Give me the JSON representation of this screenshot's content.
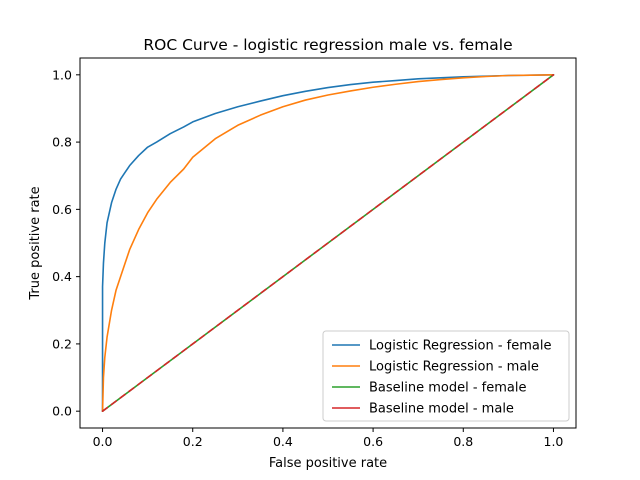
{
  "chart_data": {
    "type": "line",
    "title": "ROC Curve - logistic regression male vs. female",
    "xlabel": "False positive rate",
    "ylabel": "True positive rate",
    "xlim": [
      -0.05,
      1.05
    ],
    "ylim": [
      -0.05,
      1.05
    ],
    "xticks": [
      0.0,
      0.2,
      0.4,
      0.6,
      0.8,
      1.0
    ],
    "yticks": [
      0.0,
      0.2,
      0.4,
      0.6,
      0.8,
      1.0
    ],
    "xtick_labels": [
      "0.0",
      "0.2",
      "0.4",
      "0.6",
      "0.8",
      "1.0"
    ],
    "ytick_labels": [
      "0.0",
      "0.2",
      "0.4",
      "0.6",
      "0.8",
      "1.0"
    ],
    "grid": false,
    "legend_position": "lower-right",
    "series": [
      {
        "name": "Logistic Regression - female",
        "color": "#1f77b4",
        "x": [
          0.0,
          0.0,
          0.002,
          0.005,
          0.01,
          0.02,
          0.03,
          0.04,
          0.05,
          0.06,
          0.08,
          0.1,
          0.12,
          0.15,
          0.18,
          0.2,
          0.25,
          0.3,
          0.35,
          0.4,
          0.45,
          0.5,
          0.55,
          0.6,
          0.65,
          0.7,
          0.75,
          0.8,
          0.85,
          0.9,
          0.95,
          1.0
        ],
        "y": [
          0.0,
          0.37,
          0.44,
          0.5,
          0.56,
          0.62,
          0.66,
          0.69,
          0.71,
          0.73,
          0.76,
          0.785,
          0.8,
          0.825,
          0.845,
          0.86,
          0.885,
          0.905,
          0.922,
          0.938,
          0.951,
          0.962,
          0.971,
          0.978,
          0.983,
          0.988,
          0.991,
          0.994,
          0.996,
          0.998,
          0.999,
          1.0
        ]
      },
      {
        "name": "Logistic Regression - male",
        "color": "#ff7f0e",
        "x": [
          0.0,
          0.002,
          0.005,
          0.01,
          0.02,
          0.03,
          0.04,
          0.06,
          0.08,
          0.1,
          0.12,
          0.15,
          0.18,
          0.2,
          0.25,
          0.3,
          0.35,
          0.4,
          0.45,
          0.5,
          0.55,
          0.6,
          0.65,
          0.7,
          0.75,
          0.8,
          0.85,
          0.9,
          0.95,
          1.0
        ],
        "y": [
          0.0,
          0.1,
          0.16,
          0.22,
          0.3,
          0.36,
          0.4,
          0.48,
          0.54,
          0.59,
          0.63,
          0.68,
          0.72,
          0.755,
          0.81,
          0.85,
          0.88,
          0.905,
          0.925,
          0.94,
          0.952,
          0.963,
          0.972,
          0.98,
          0.986,
          0.991,
          0.995,
          0.998,
          0.999,
          1.0
        ]
      },
      {
        "name": "Baseline model - female",
        "color": "#2ca02c",
        "x": [
          0.0,
          1.0
        ],
        "y": [
          0.0,
          1.0
        ]
      },
      {
        "name": "Baseline model - male",
        "color": "#d62728",
        "dashed": true,
        "x": [
          0.0,
          1.0
        ],
        "y": [
          0.0,
          1.0
        ]
      }
    ]
  }
}
